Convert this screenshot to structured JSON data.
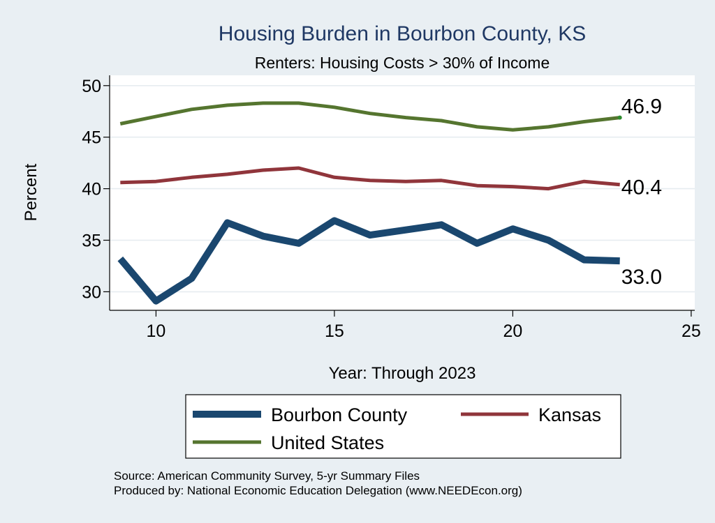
{
  "chart_data": {
    "type": "line",
    "title": "Housing Burden in Bourbon County, KS",
    "subtitle": "Renters: Housing Costs > 30% of Income",
    "xlabel": "Year: Through 2023",
    "ylabel": "Percent",
    "xlim": [
      8.7,
      25.1
    ],
    "ylim": [
      28.2,
      51.0
    ],
    "x_ticks": [
      10,
      15,
      20,
      25
    ],
    "y_ticks": [
      30,
      35,
      40,
      45,
      50
    ],
    "grid": true,
    "x": [
      9,
      10,
      11,
      12,
      13,
      14,
      15,
      16,
      17,
      18,
      19,
      20,
      21,
      22,
      23
    ],
    "series": [
      {
        "name": "Bourbon County",
        "color": "#1a476f",
        "values": [
          33.2,
          29.1,
          31.3,
          36.7,
          35.4,
          34.7,
          36.9,
          35.5,
          36.0,
          36.5,
          34.7,
          36.1,
          35.0,
          33.1,
          33.0
        ],
        "end_label": "33.0"
      },
      {
        "name": "Kansas",
        "color": "#90353b",
        "values": [
          40.6,
          40.7,
          41.1,
          41.4,
          41.8,
          42.0,
          41.1,
          40.8,
          40.7,
          40.8,
          40.3,
          40.2,
          40.0,
          40.7,
          40.4
        ],
        "end_label": "40.4"
      },
      {
        "name": "United States",
        "color": "#55752f",
        "values": [
          46.3,
          47.0,
          47.7,
          48.1,
          48.3,
          48.3,
          47.9,
          47.3,
          46.9,
          46.6,
          46.0,
          45.7,
          46.0,
          46.5,
          46.9
        ],
        "end_label": "46.9"
      }
    ],
    "legend": {
      "position": "bottom",
      "entries": [
        "Bourbon County",
        "Kansas",
        "United States"
      ]
    },
    "notes": [
      "Source: American Community Survey, 5-yr Summary Files",
      "Produced by: National Economic Education Delegation (www.NEEDEcon.org)"
    ]
  }
}
